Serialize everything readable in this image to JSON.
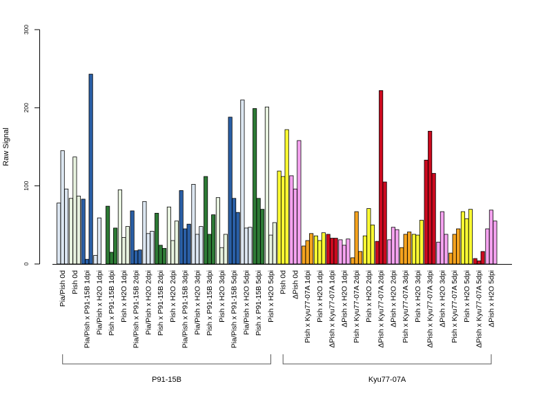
{
  "chart_data": {
    "type": "bar",
    "title": "",
    "xlabel": "",
    "ylabel": "Raw Signal",
    "ylim": [
      0,
      300
    ],
    "yticks": [
      0,
      100,
      200,
      300
    ],
    "grid": false,
    "legend": "none",
    "categories": [
      "Pia/Pish 0d",
      "Pish 0d",
      "Pia/Pish x P91-15B 1dpi",
      "Pia/Pish x H2O 1dpi",
      "Pish x P91-15B 1dpi",
      "Pish x H2O 1dpi",
      "Pia/Pish x P91-15B 2dpi",
      "Pia/Pish x H2O 2dpi",
      "Pish x P91-15B 2dpi",
      "Pish x H2O 2dpi",
      "Pia/Pish x P91-15B 3dpi",
      "Pia/Pish x H2O 3dpi",
      "Pish x P91-15B 3dpi",
      "Pish x H2O 3dpi",
      "Pia/Pish x P91-15B 5dpi",
      "Pia/Pish x H2O 5dpi",
      "Pish x P91-15B 5dpi",
      "Pish x H2O 5dpi",
      "Pish 0d",
      "ΔPish 0d",
      "Pish x Kyu77-07A 1dpi",
      "Pish x H2O 1dpi",
      "ΔPish x Kyu77-07A 1dpi",
      "ΔPish x H2O 1dpi",
      "Pish x Kyu77-07A 2dpi",
      "Pish x H2O 2dpi",
      "ΔPish x Kyu77-07A 2dpi",
      "ΔPish x H2O 2dpi",
      "Pish x Kyu77-07A 3dpi",
      "Pish x H2O 3dpi",
      "ΔPish x Kyu77-07A 3dpi",
      "ΔPish x H2O 3dpi",
      "Pish x Kyu77-07A 5dpi",
      "Pish x H2O 5dpi",
      "ΔPish x Kyu77-07A 5dpi",
      "ΔPish x H2O 5dpi"
    ],
    "tick_labels": [
      "Pia/Pish 0d",
      "Pish 0d",
      "Pia/Pish x P91-15B 1dpi",
      "Pia/Pish x H2O 1dpi",
      "Pish x P91-15B 1dpi",
      "Pish x H2O 1dpi",
      "Pia/Pish x P91-15B 2dpi",
      "Pia/Pish x H2O 2dpi",
      "Pish x P91-15B 2dpi",
      "Pish x H2O 2dpi",
      "Pia/Pish x P91-15B 3dpi",
      "Pia/Pish x H2O 3dpi",
      "Pish x P91-15B 3dpi",
      "Pish x H2O 3dpi",
      "Pia/Pish x P91-15B 5dpi",
      "Pia/Pish x H2O 5dpi",
      "Pish x P91-15B 5dpi",
      "Pish x H2O 5dpi",
      "Pish 0d",
      "ΔPish 0d",
      "Pish x Kyu77-07A 1dpi",
      "Pish x H2O 1dpi",
      "ΔPish x Kyu77-07A 1dpi",
      "ΔPish x H2O 1dpi",
      "Pish x Kyu77-07A 2dpi",
      "Pish x H2O 2dpi",
      "ΔPish x Kyu77-07A 2dpi",
      "ΔPish x H2O 2dpi",
      "Pish x Kyu77-07A 3dpi",
      "Pish x H2O 3dpi",
      "ΔPish x Kyu77-07A 3dpi",
      "ΔPish x H2O 3dpi",
      "Pish x Kyu77-07A 5dpi",
      "Pish x H2O 5dpi",
      "ΔPish x Kyu77-07A 5dpi",
      "ΔPish x H2O 5dpi"
    ],
    "replicates_per_group": 3,
    "values": [
      [
        78,
        145,
        96
      ],
      [
        84,
        137,
        87
      ],
      [
        83,
        6,
        243
      ],
      [
        11,
        59,
        0
      ],
      [
        74,
        15,
        46
      ],
      [
        95,
        34,
        48
      ],
      [
        68,
        17,
        18
      ],
      [
        80,
        39,
        42
      ],
      [
        65,
        24,
        20
      ],
      [
        73,
        30,
        55
      ],
      [
        94,
        45,
        51
      ],
      [
        102,
        38,
        48
      ],
      [
        112,
        38,
        63
      ],
      [
        85,
        21,
        38
      ],
      [
        188,
        84,
        66
      ],
      [
        210,
        46,
        47
      ],
      [
        199,
        84,
        70
      ],
      [
        201,
        37,
        53
      ],
      [
        119,
        112,
        172
      ],
      [
        113,
        96,
        158
      ],
      [
        23,
        30,
        39
      ],
      [
        36,
        30,
        40
      ],
      [
        38,
        33,
        33
      ],
      [
        31,
        24,
        32
      ],
      [
        8,
        67,
        16
      ],
      [
        36,
        71,
        50
      ],
      [
        29,
        222,
        105
      ],
      [
        31,
        47,
        44
      ],
      [
        21,
        38,
        41
      ],
      [
        38,
        37,
        56
      ],
      [
        133,
        170,
        116
      ],
      [
        28,
        67,
        38
      ],
      [
        14,
        38,
        45
      ],
      [
        67,
        58,
        70
      ],
      [
        7,
        4,
        16
      ],
      [
        45,
        69,
        55
      ]
    ],
    "colors": [
      "#dce6f1",
      "#e8f3e0",
      "#2a5fa6",
      "#dce6f1",
      "#2d7a35",
      "#e8f3e0",
      "#2a5fa6",
      "#dce6f1",
      "#2d7a35",
      "#e8f3e0",
      "#2a5fa6",
      "#dce6f1",
      "#2d7a35",
      "#e8f3e0",
      "#2a5fa6",
      "#dce6f1",
      "#2d7a35",
      "#e8f3e0",
      "#ffff33",
      "#f5a3f0",
      "#f5a31e",
      "#ffff33",
      "#cc0a1f",
      "#f5a3f0",
      "#f5a31e",
      "#ffff33",
      "#cc0a1f",
      "#f5a3f0",
      "#f5a31e",
      "#ffff33",
      "#cc0a1f",
      "#f5a3f0",
      "#f5a31e",
      "#ffff33",
      "#cc0a1f",
      "#f5a3f0"
    ],
    "bar_outline_color": "#000000",
    "strain_groups": [
      {
        "label": "P91-15B",
        "start": 0,
        "end": 17
      },
      {
        "label": "Kyu77-07A",
        "start": 18,
        "end": 35
      }
    ]
  }
}
